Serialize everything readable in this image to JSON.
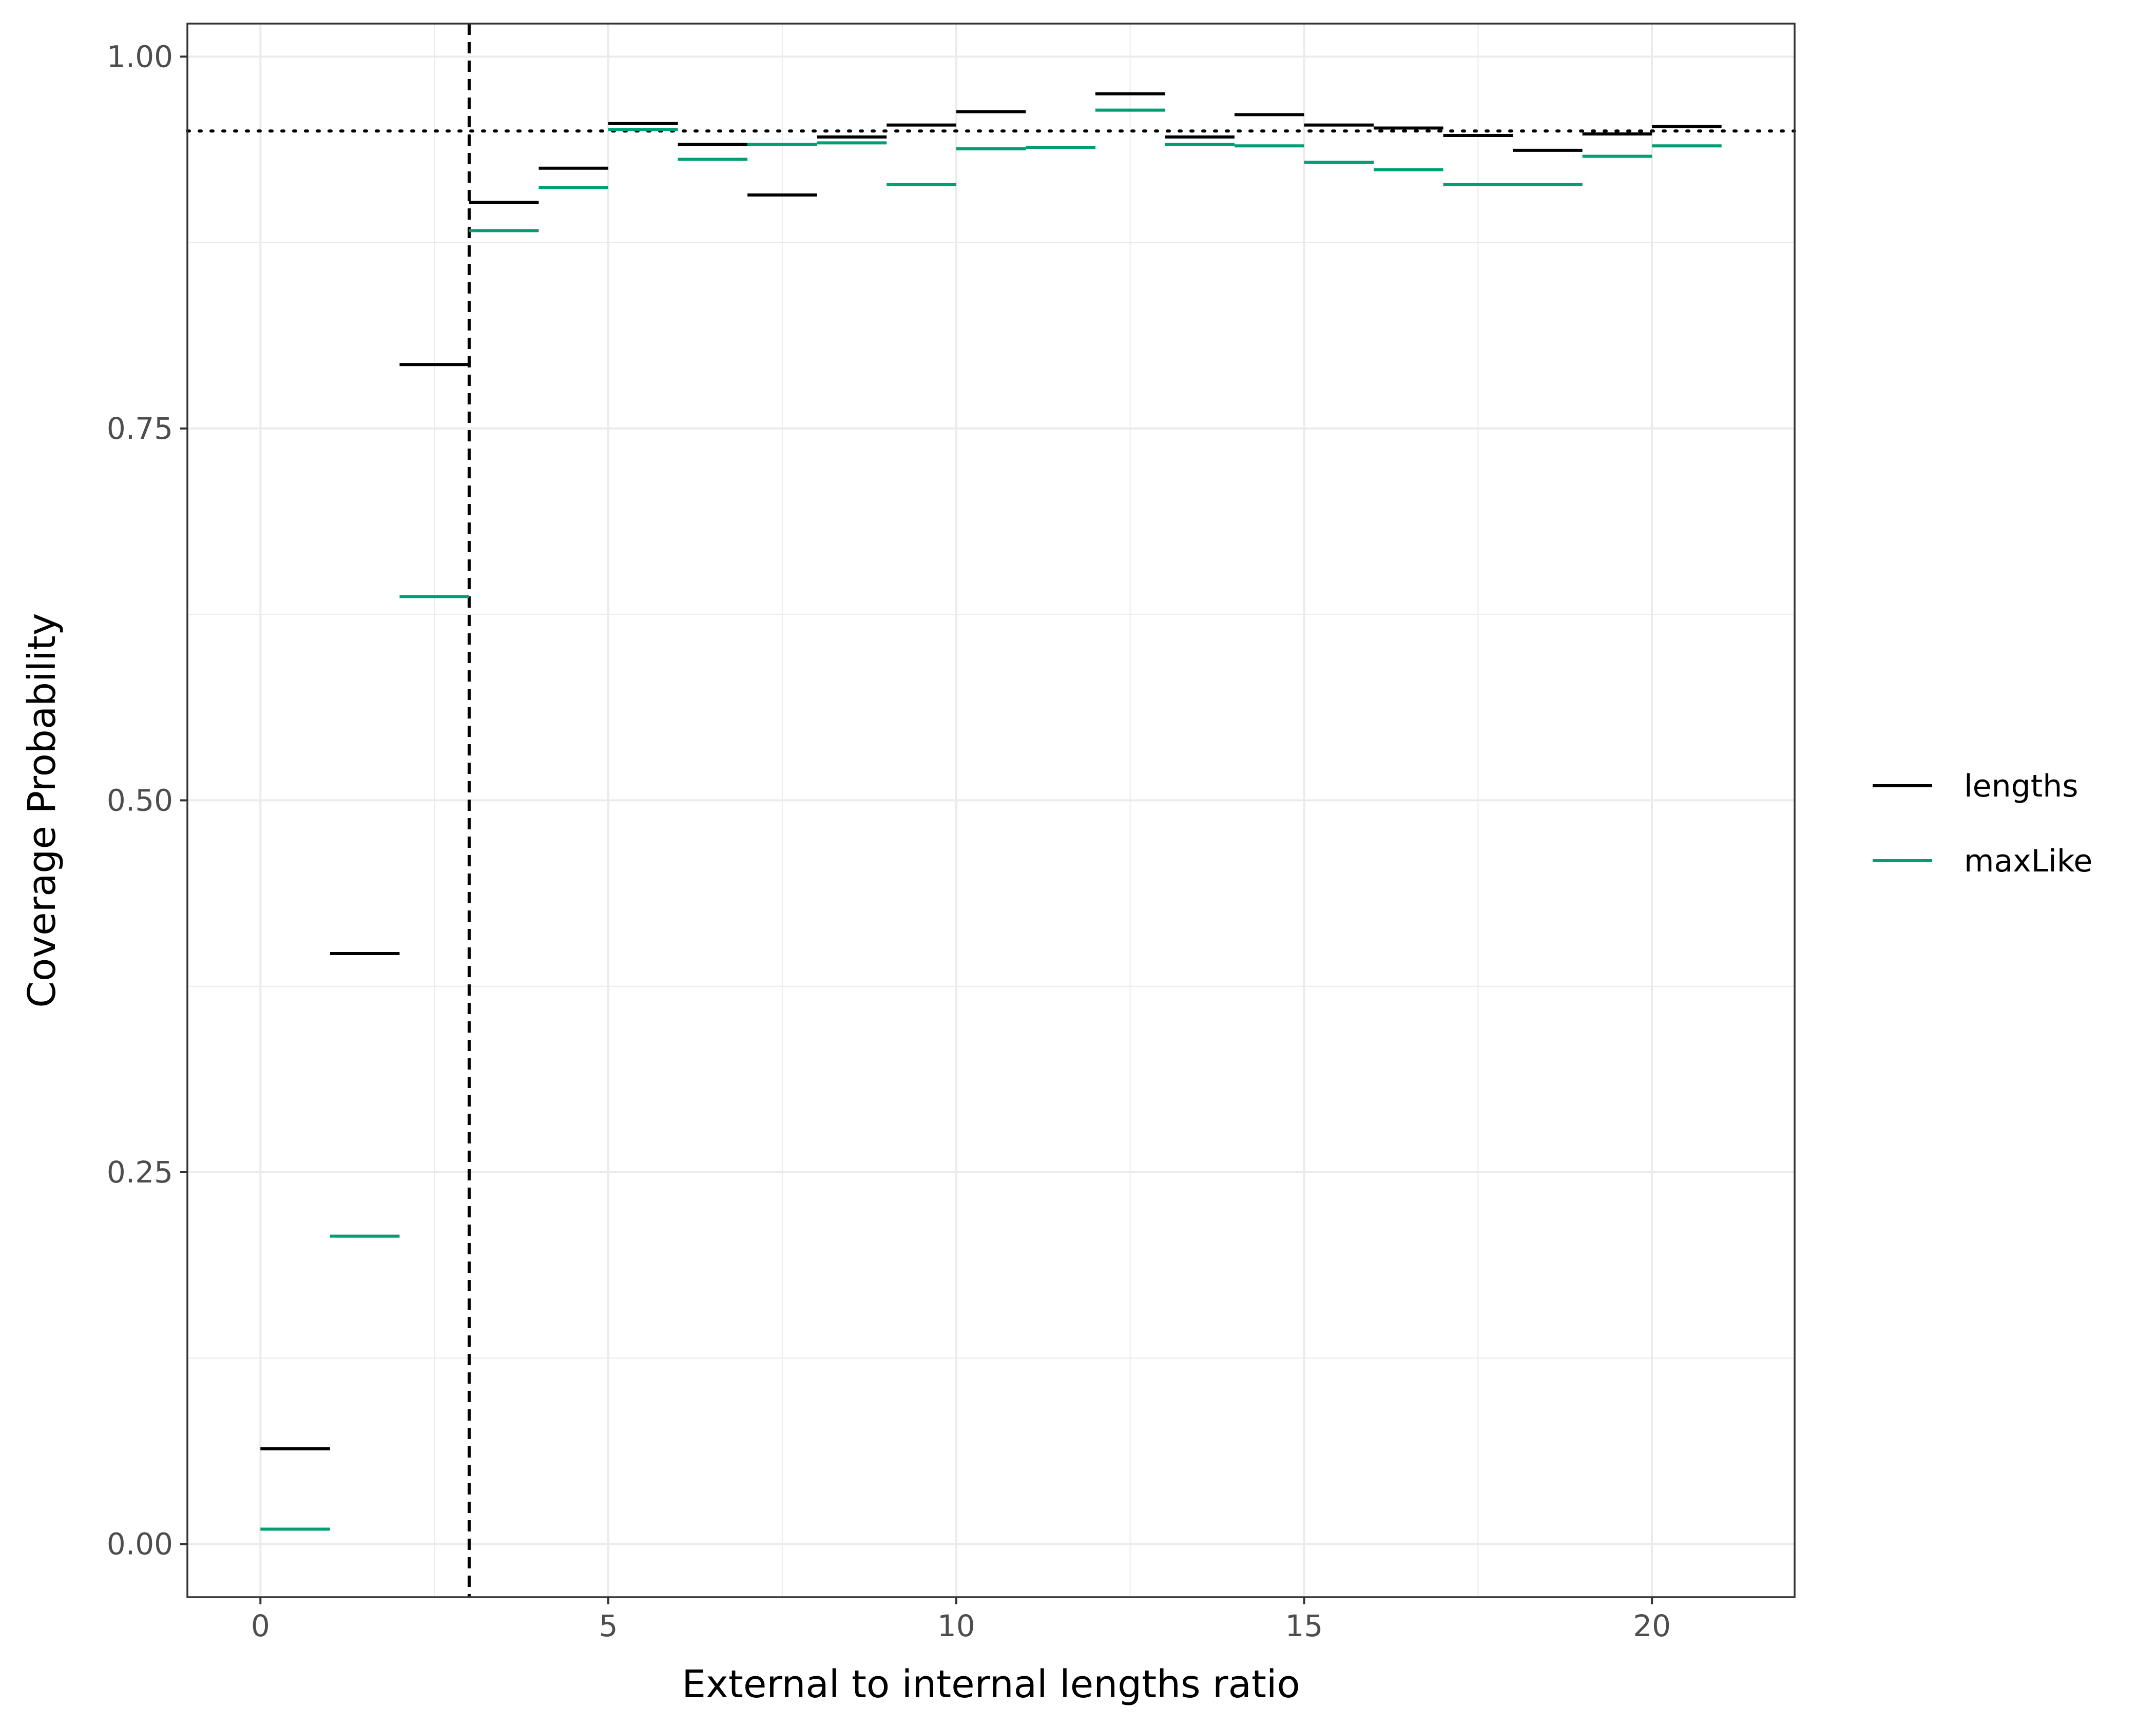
{
  "chart_data": {
    "type": "line",
    "title": "",
    "xlabel": "External to internal lengths ratio",
    "ylabel": "Coverage Probability",
    "xlim": [
      -1.05,
      22.05
    ],
    "ylim": [
      -0.0357,
      1.0222
    ],
    "x_ticks": [
      0,
      5,
      10,
      15,
      20
    ],
    "x_tick_labels": [
      "0",
      "5",
      "10",
      "15",
      "20"
    ],
    "y_ticks": [
      0,
      0.25,
      0.5,
      0.75,
      1.0
    ],
    "y_tick_labels": [
      "0.00",
      "0.25",
      "0.50",
      "0.75",
      "1.00"
    ],
    "grid": true,
    "legend_position": "right",
    "reference_lines": [
      {
        "orientation": "vertical",
        "value": 3,
        "style": "dashed",
        "color": "#000000"
      },
      {
        "orientation": "horizontal",
        "value": 0.95,
        "style": "dotted",
        "color": "#000000"
      }
    ],
    "series": [
      {
        "name": "lengths",
        "color": "#000000",
        "segments": [
          {
            "x": [
              0,
              1
            ],
            "y": 0.064
          },
          {
            "x": [
              1,
              2
            ],
            "y": 0.397
          },
          {
            "x": [
              2,
              3
            ],
            "y": 0.793
          },
          {
            "x": [
              3,
              4
            ],
            "y": 0.902
          },
          {
            "x": [
              4,
              5
            ],
            "y": 0.925
          },
          {
            "x": [
              5,
              6
            ],
            "y": 0.955
          },
          {
            "x": [
              6,
              7
            ],
            "y": 0.941
          },
          {
            "x": [
              7,
              8
            ],
            "y": 0.907
          },
          {
            "x": [
              8,
              9
            ],
            "y": 0.946
          },
          {
            "x": [
              9,
              10
            ],
            "y": 0.954
          },
          {
            "x": [
              10,
              11
            ],
            "y": 0.963
          },
          {
            "x": [
              11,
              12
            ],
            "y": 0.939
          },
          {
            "x": [
              12,
              13
            ],
            "y": 0.975
          },
          {
            "x": [
              13,
              14
            ],
            "y": 0.946
          },
          {
            "x": [
              14,
              15
            ],
            "y": 0.961
          },
          {
            "x": [
              15,
              16
            ],
            "y": 0.954
          },
          {
            "x": [
              16,
              17
            ],
            "y": 0.952
          },
          {
            "x": [
              17,
              18
            ],
            "y": 0.947
          },
          {
            "x": [
              18,
              19
            ],
            "y": 0.937
          },
          {
            "x": [
              19,
              20
            ],
            "y": 0.948
          },
          {
            "x": [
              20,
              21
            ],
            "y": 0.953
          }
        ]
      },
      {
        "name": "maxLike",
        "color": "#009E73",
        "segments": [
          {
            "x": [
              0,
              1
            ],
            "y": 0.01
          },
          {
            "x": [
              1,
              2
            ],
            "y": 0.207
          },
          {
            "x": [
              2,
              3
            ],
            "y": 0.637
          },
          {
            "x": [
              3,
              4
            ],
            "y": 0.883
          },
          {
            "x": [
              4,
              5
            ],
            "y": 0.912
          },
          {
            "x": [
              5,
              6
            ],
            "y": 0.951
          },
          {
            "x": [
              6,
              7
            ],
            "y": 0.931
          },
          {
            "x": [
              7,
              8
            ],
            "y": 0.941
          },
          {
            "x": [
              8,
              9
            ],
            "y": 0.942
          },
          {
            "x": [
              9,
              10
            ],
            "y": 0.914
          },
          {
            "x": [
              10,
              11
            ],
            "y": 0.938
          },
          {
            "x": [
              11,
              12
            ],
            "y": 0.939
          },
          {
            "x": [
              12,
              13
            ],
            "y": 0.964
          },
          {
            "x": [
              13,
              14
            ],
            "y": 0.941
          },
          {
            "x": [
              14,
              15
            ],
            "y": 0.94
          },
          {
            "x": [
              15,
              16
            ],
            "y": 0.929
          },
          {
            "x": [
              16,
              17
            ],
            "y": 0.924
          },
          {
            "x": [
              17,
              18
            ],
            "y": 0.914
          },
          {
            "x": [
              18,
              19
            ],
            "y": 0.914
          },
          {
            "x": [
              19,
              20
            ],
            "y": 0.933
          },
          {
            "x": [
              20,
              21
            ],
            "y": 0.94
          }
        ]
      }
    ]
  }
}
